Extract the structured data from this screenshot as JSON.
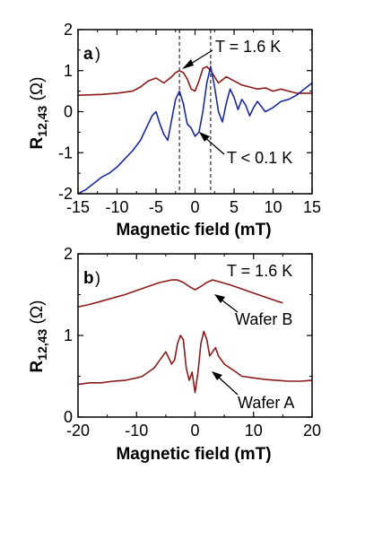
{
  "colors": {
    "dark_red": "#8b1a1a",
    "blue": "#1a2a9b",
    "axis": "#000000"
  },
  "chart_data": [
    {
      "type": "line",
      "panel_label": "a",
      "xlabel": "Magnetic field  (mT)",
      "ylabel_main": "R",
      "ylabel_sub": "12,43",
      "ylabel_unit": "(Ω)",
      "xlim": [
        -15,
        15
      ],
      "ylim": [
        -2,
        2
      ],
      "xticks": [
        "-15",
        "-10",
        "-5",
        "0",
        "5",
        "10",
        "15"
      ],
      "yticks": [
        "-2",
        "-1",
        "0",
        "1",
        "2"
      ],
      "dashed_lines_x": [
        -2,
        2
      ],
      "annotations": [
        "T = 1.6 K",
        "T < 0.1 K"
      ],
      "series": [
        {
          "name": "T = 1.6 K",
          "color": "#8b1a1a",
          "x": [
            -15,
            -12,
            -10,
            -8,
            -7,
            -6,
            -5,
            -4,
            -3,
            -2.5,
            -2,
            -1.5,
            -1,
            -0.5,
            0,
            0.5,
            1,
            1.5,
            2,
            2.5,
            3,
            4,
            5,
            6,
            7,
            8,
            9,
            10,
            11,
            12,
            13,
            14,
            15
          ],
          "y": [
            0.4,
            0.42,
            0.45,
            0.5,
            0.6,
            0.75,
            0.82,
            0.7,
            0.85,
            0.95,
            1.0,
            0.95,
            0.8,
            0.55,
            0.5,
            0.75,
            1.05,
            1.1,
            1.0,
            0.85,
            0.7,
            0.85,
            0.75,
            0.65,
            0.6,
            0.55,
            0.58,
            0.5,
            0.55,
            0.5,
            0.45,
            0.45,
            0.45
          ]
        },
        {
          "name": "T < 0.1 K",
          "color": "#1a2a9b",
          "x": [
            -15,
            -14,
            -13,
            -12,
            -11,
            -10,
            -9,
            -8,
            -7,
            -6,
            -5.5,
            -5,
            -4.5,
            -4,
            -3.5,
            -3,
            -2.5,
            -2,
            -1.5,
            -1,
            -0.5,
            0,
            0.5,
            1,
            1.5,
            2,
            2.5,
            3,
            3.5,
            4,
            4.5,
            5,
            5.5,
            6,
            6.5,
            7,
            7.5,
            8,
            9,
            10,
            11,
            12,
            13,
            14,
            15
          ],
          "y": [
            -2.0,
            -1.9,
            -1.75,
            -1.6,
            -1.5,
            -1.35,
            -1.15,
            -0.95,
            -0.7,
            -0.3,
            -0.1,
            0.0,
            -0.3,
            -0.55,
            -0.7,
            -0.2,
            0.3,
            0.5,
            0.2,
            -0.3,
            -0.4,
            -0.6,
            -0.5,
            0.0,
            0.7,
            1.1,
            0.6,
            0.0,
            -0.25,
            0.2,
            0.55,
            0.35,
            0.05,
            0.3,
            0.15,
            -0.1,
            0.1,
            0.25,
            0.0,
            0.1,
            0.25,
            0.3,
            0.4,
            0.55,
            0.7
          ]
        }
      ]
    },
    {
      "type": "line",
      "panel_label": "b",
      "xlabel": "Magnetic field  (mT)",
      "ylabel_main": "R",
      "ylabel_sub": "12,43",
      "ylabel_unit": "(Ω)",
      "xlim": [
        -20,
        20
      ],
      "ylim": [
        0,
        2
      ],
      "xticks": [
        "-20",
        "-10",
        "0",
        "10",
        "20"
      ],
      "yticks": [
        "0",
        "1",
        "2"
      ],
      "annotations": [
        "T = 1.6 K",
        "Wafer B",
        "Wafer A"
      ],
      "series": [
        {
          "name": "Wafer B",
          "color": "#8b1a1a",
          "x": [
            -20,
            -18,
            -16,
            -14,
            -12,
            -10,
            -8,
            -6,
            -4,
            -3,
            -2,
            -1,
            0,
            1,
            2,
            3,
            4,
            6,
            8,
            10,
            12,
            14,
            15
          ],
          "y": [
            1.35,
            1.38,
            1.42,
            1.46,
            1.5,
            1.55,
            1.6,
            1.65,
            1.68,
            1.68,
            1.65,
            1.6,
            1.56,
            1.6,
            1.65,
            1.68,
            1.66,
            1.62,
            1.57,
            1.52,
            1.47,
            1.42,
            1.4
          ]
        },
        {
          "name": "Wafer A",
          "color": "#8b1a1a",
          "x": [
            -20,
            -18,
            -16,
            -14,
            -12,
            -10,
            -9,
            -8,
            -7,
            -6,
            -5,
            -4,
            -3.5,
            -3,
            -2.5,
            -2,
            -1.5,
            -1,
            -0.5,
            0,
            0.5,
            1,
            1.5,
            2,
            2.5,
            3,
            3.5,
            4,
            5,
            6,
            7,
            8,
            10,
            12,
            14,
            16,
            18,
            20
          ],
          "y": [
            0.4,
            0.42,
            0.42,
            0.44,
            0.45,
            0.48,
            0.5,
            0.55,
            0.6,
            0.7,
            0.8,
            0.65,
            0.7,
            0.9,
            1.0,
            0.95,
            0.6,
            0.45,
            0.55,
            0.3,
            0.55,
            0.9,
            1.05,
            0.95,
            0.75,
            0.8,
            0.85,
            0.75,
            0.65,
            0.6,
            0.55,
            0.5,
            0.48,
            0.46,
            0.45,
            0.44,
            0.44,
            0.45
          ]
        }
      ]
    }
  ]
}
